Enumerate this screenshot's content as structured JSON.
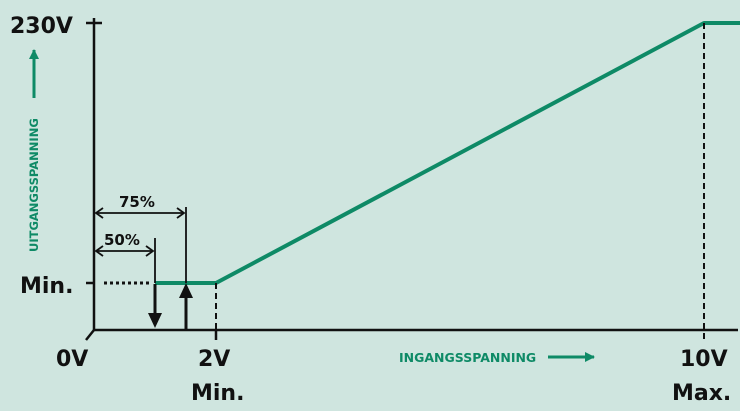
{
  "colors": {
    "background": "#cfe5df",
    "curve": "#0e8a66",
    "axis": "#111111",
    "label_teal": "#0e8a66"
  },
  "labels": {
    "y_max": "230V",
    "y_min": "Min.",
    "x_origin": "0V",
    "x_min_value": "2V",
    "x_min_caption": "Min.",
    "x_max_value": "10V",
    "x_max_caption": "Max.",
    "x_axis_title": "INGANGSSPANNING",
    "y_axis_title": "UITGANGSSPANNING",
    "pct_75": "75%",
    "pct_50": "50%"
  },
  "chart_data": {
    "type": "line",
    "xlabel": "INGANGSSPANNING",
    "ylabel": "UITGANGSSPANNING",
    "x_ticks": [
      "0V",
      "2V",
      "10V"
    ],
    "y_ticks": [
      "Min.",
      "230V"
    ],
    "series": [
      {
        "points": [
          {
            "x": 1.5,
            "y": "Min."
          },
          {
            "x": 2,
            "y": "Min."
          },
          {
            "x": 10,
            "y": "230V"
          },
          {
            "x": 10.6,
            "y": "230V"
          }
        ]
      }
    ],
    "hysteresis": {
      "switch_off": {
        "label": "50%",
        "x": 1.0
      },
      "switch_on": {
        "label": "75%",
        "x": 1.5
      }
    }
  }
}
